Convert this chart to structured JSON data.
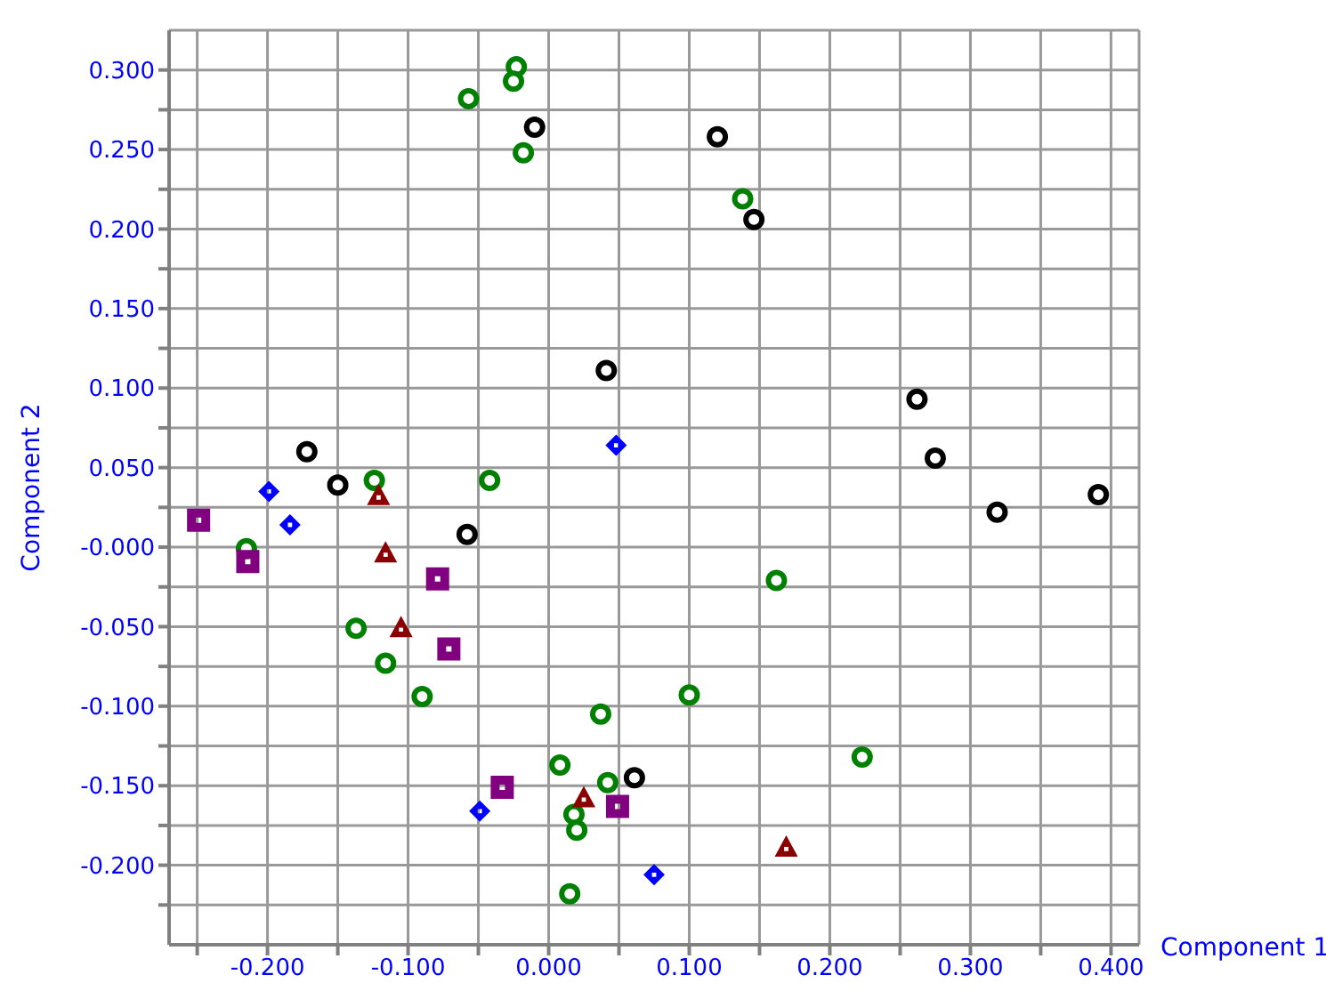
{
  "chart_data": {
    "type": "scatter",
    "xlabel": "Component 1",
    "ylabel": "Component 2",
    "xlim": [
      -0.27,
      0.42
    ],
    "ylim": [
      -0.25,
      0.325
    ],
    "xticks": [
      {
        "value": -0.25,
        "label": null
      },
      {
        "value": -0.2,
        "label": "-0.200"
      },
      {
        "value": -0.15,
        "label": null
      },
      {
        "value": -0.1,
        "label": "-0.100"
      },
      {
        "value": -0.05,
        "label": null
      },
      {
        "value": 0,
        "label": "0.000"
      },
      {
        "value": 0.05,
        "label": null
      },
      {
        "value": 0.1,
        "label": "0.100"
      },
      {
        "value": 0.15,
        "label": null
      },
      {
        "value": 0.2,
        "label": "0.200"
      },
      {
        "value": 0.25,
        "label": null
      },
      {
        "value": 0.3,
        "label": "0.300"
      },
      {
        "value": 0.35,
        "label": null
      },
      {
        "value": 0.4,
        "label": "0.400"
      }
    ],
    "yticks": [
      {
        "value": -0.225,
        "label": null
      },
      {
        "value": -0.2,
        "label": "-0.200"
      },
      {
        "value": -0.175,
        "label": null
      },
      {
        "value": -0.15,
        "label": "-0.150"
      },
      {
        "value": -0.125,
        "label": null
      },
      {
        "value": -0.1,
        "label": "-0.100"
      },
      {
        "value": -0.075,
        "label": null
      },
      {
        "value": -0.05,
        "label": "-0.050"
      },
      {
        "value": -0.025,
        "label": null
      },
      {
        "value": 0,
        "label": "-0.000"
      },
      {
        "value": 0.025,
        "label": null
      },
      {
        "value": 0.05,
        "label": "0.050"
      },
      {
        "value": 0.075,
        "label": null
      },
      {
        "value": 0.1,
        "label": "0.100"
      },
      {
        "value": 0.125,
        "label": null
      },
      {
        "value": 0.15,
        "label": "0.150"
      },
      {
        "value": 0.175,
        "label": null
      },
      {
        "value": 0.2,
        "label": "0.200"
      },
      {
        "value": 0.225,
        "label": null
      },
      {
        "value": 0.25,
        "label": "0.250"
      },
      {
        "value": 0.275,
        "label": null
      },
      {
        "value": 0.3,
        "label": "0.300"
      }
    ],
    "grid": true,
    "legend": false,
    "series": [
      {
        "color": "#000000",
        "marker": "circle",
        "x": [
          -0.01,
          0.12,
          0.146,
          0.041,
          0.262,
          0.275,
          0.319,
          0.391,
          -0.172,
          -0.15,
          -0.058,
          0.061
        ],
        "values": [
          0.264,
          0.258,
          0.206,
          0.111,
          0.093,
          0.056,
          0.022,
          0.033,
          0.06,
          0.039,
          0.008,
          -0.145
        ]
      },
      {
        "color": "#008000",
        "marker": "circle",
        "x": [
          -0.023,
          -0.025,
          -0.057,
          -0.018,
          0.138,
          -0.124,
          -0.042,
          -0.215,
          -0.137,
          -0.116,
          -0.09,
          0.037,
          0.008,
          0.042,
          0.018,
          0.02,
          0.015,
          0.162,
          0.1,
          0.223
        ],
        "values": [
          0.302,
          0.293,
          0.282,
          0.248,
          0.219,
          0.042,
          0.042,
          -0.001,
          -0.051,
          -0.073,
          -0.094,
          -0.105,
          -0.137,
          -0.148,
          -0.168,
          -0.178,
          -0.218,
          -0.021,
          -0.093,
          -0.132
        ]
      },
      {
        "color": "#0000ff",
        "marker": "diamond",
        "x": [
          -0.199,
          0.048,
          -0.184,
          -0.049,
          0.075
        ],
        "values": [
          0.035,
          0.064,
          0.014,
          -0.166,
          -0.206
        ]
      },
      {
        "color": "#8b0000",
        "marker": "triangle",
        "x": [
          -0.121,
          -0.116,
          -0.105,
          0.025,
          0.169
        ],
        "values": [
          0.032,
          -0.004,
          -0.051,
          -0.158,
          -0.189
        ]
      },
      {
        "color": "#800080",
        "marker": "square",
        "x": [
          -0.249,
          -0.214,
          -0.079,
          -0.071,
          -0.033,
          0.049
        ],
        "values": [
          0.017,
          -0.009,
          -0.02,
          -0.064,
          -0.151,
          -0.163
        ]
      }
    ]
  }
}
